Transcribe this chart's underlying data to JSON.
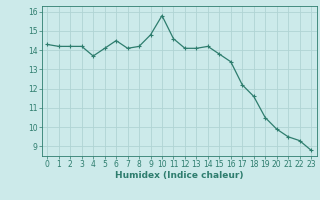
{
  "x": [
    0,
    1,
    2,
    3,
    4,
    5,
    6,
    7,
    8,
    9,
    10,
    11,
    12,
    13,
    14,
    15,
    16,
    17,
    18,
    19,
    20,
    21,
    22,
    23
  ],
  "y": [
    14.3,
    14.2,
    14.2,
    14.2,
    13.7,
    14.1,
    14.5,
    14.1,
    14.2,
    14.8,
    15.8,
    14.6,
    14.1,
    14.1,
    14.2,
    13.8,
    13.4,
    12.2,
    11.6,
    10.5,
    9.9,
    9.5,
    9.3,
    8.8
  ],
  "line_color": "#2e7d6e",
  "marker": "+",
  "marker_size": 3.5,
  "marker_linewidth": 0.8,
  "bg_color": "#cceaea",
  "grid_color": "#b0d4d4",
  "xlabel": "Humidex (Indice chaleur)",
  "xlabel_fontsize": 6.5,
  "tick_fontsize": 5.5,
  "ylim": [
    8.5,
    16.3
  ],
  "xlim": [
    -0.5,
    23.5
  ],
  "yticks": [
    9,
    10,
    11,
    12,
    13,
    14,
    15,
    16
  ],
  "xticks": [
    0,
    1,
    2,
    3,
    4,
    5,
    6,
    7,
    8,
    9,
    10,
    11,
    12,
    13,
    14,
    15,
    16,
    17,
    18,
    19,
    20,
    21,
    22,
    23
  ],
  "linewidth": 0.9
}
